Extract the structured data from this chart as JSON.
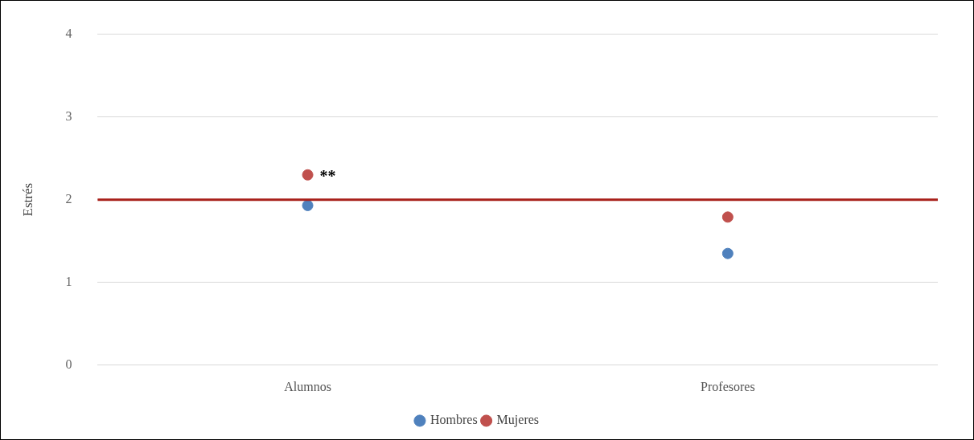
{
  "chart_data": {
    "type": "scatter",
    "ylabel": "Estrés",
    "categories": [
      "Alumnos",
      "Profesores"
    ],
    "series": [
      {
        "name": "Hombres",
        "color": "#4f81bd",
        "values": [
          1.93,
          1.35
        ]
      },
      {
        "name": "Mujeres",
        "color": "#c0504d",
        "values": [
          2.3,
          1.79
        ]
      }
    ],
    "ylim": [
      0,
      4
    ],
    "yticks": [
      0,
      1,
      2,
      3,
      4
    ],
    "grid": "y",
    "legend": "bottom",
    "marker": "circle",
    "ref_lines": [
      {
        "axis": "y",
        "value": 2,
        "color": "#a8201a"
      }
    ],
    "annotations": [
      {
        "text": "**",
        "x": "Alumnos",
        "y": 2.3
      }
    ]
  }
}
